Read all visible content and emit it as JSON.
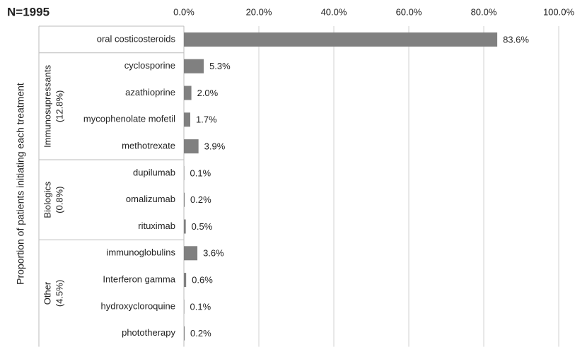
{
  "chart_data": {
    "type": "bar",
    "orientation": "horizontal",
    "note": "N=1995",
    "ylabel": "Proportion of patients initiating each treatment",
    "categories": [
      "oral costicosteroids",
      "cyclosporine",
      "azathioprine",
      "mycophenolate mofetil",
      "methotrexate",
      "dupilumab",
      "omalizumab",
      "rituximab",
      "immunoglobulins",
      "Interferon gamma",
      "hydroxycloroquine",
      "phototherapy"
    ],
    "values": [
      83.6,
      5.3,
      2.0,
      1.7,
      3.9,
      0.1,
      0.2,
      0.5,
      3.6,
      0.6,
      0.1,
      0.2
    ],
    "value_labels": [
      "83.6%",
      "5.3%",
      "2.0%",
      "1.7%",
      "3.9%",
      "0.1%",
      "0.2%",
      "0.5%",
      "3.6%",
      "0.6%",
      "0.1%",
      "0.2%"
    ],
    "groups": [
      {
        "name": "Immunosupressants",
        "share": "(12.8%)"
      },
      {
        "name": "Biologics",
        "share": "(0.8%)"
      },
      {
        "name": "Other",
        "share": "(4.5%)"
      }
    ],
    "color": "#808080",
    "xlim": [
      0,
      100
    ],
    "xticks": [
      {
        "value": 0,
        "label": "0.0%"
      },
      {
        "value": 20,
        "label": "20.0%"
      },
      {
        "value": 40,
        "label": "40.0%"
      },
      {
        "value": 60,
        "label": "60.0%"
      },
      {
        "value": 80,
        "label": "80.0%"
      },
      {
        "value": 100,
        "label": "100.0%"
      }
    ],
    "grid": true
  }
}
